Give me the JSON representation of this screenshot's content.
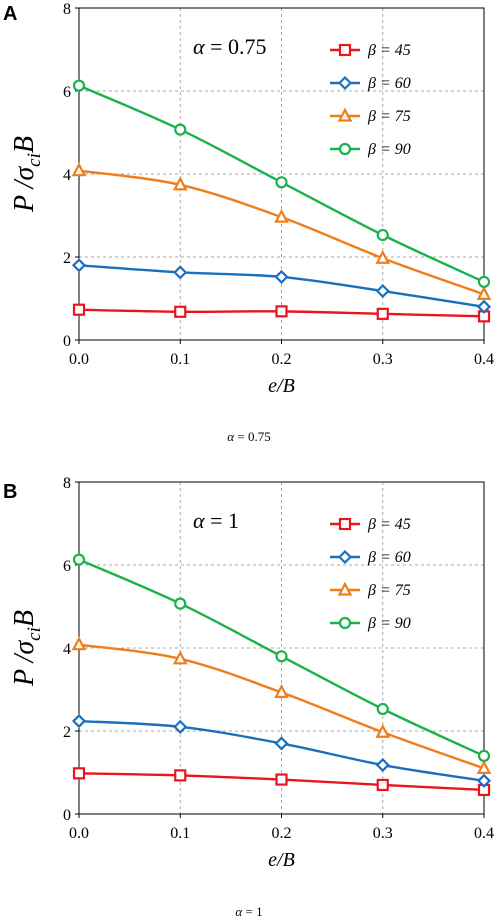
{
  "chart_data": [
    {
      "type": "line",
      "panel_label": "A",
      "inset_label": "α = 0.75",
      "caption": "α = 0.75",
      "xlabel": "e/B",
      "ylabel": "P /σciB",
      "xlim": [
        0,
        0.4
      ],
      "ylim": [
        0,
        8
      ],
      "x_ticks": [
        "0.0",
        "0.1",
        "0.2",
        "0.3",
        "0.4"
      ],
      "y_ticks": [
        "0",
        "2",
        "4",
        "6",
        "8"
      ],
      "grid": true,
      "legend_position": "top-right",
      "x": [
        0.0,
        0.1,
        0.2,
        0.3,
        0.4
      ],
      "series": [
        {
          "name": "β = 45",
          "color": "#e8161c",
          "marker": "square",
          "values": [
            0.73,
            0.68,
            0.69,
            0.63,
            0.57
          ]
        },
        {
          "name": "β = 60",
          "color": "#1a6fbd",
          "marker": "diamond",
          "values": [
            1.8,
            1.63,
            1.52,
            1.18,
            0.8
          ]
        },
        {
          "name": "β = 75",
          "color": "#f07d1a",
          "marker": "triangle",
          "values": [
            4.08,
            3.74,
            2.96,
            1.97,
            1.1
          ]
        },
        {
          "name": "β = 90",
          "color": "#1ab24a",
          "marker": "circle",
          "values": [
            6.13,
            5.07,
            3.8,
            2.53,
            1.4
          ]
        }
      ]
    },
    {
      "type": "line",
      "panel_label": "B",
      "inset_label": "α = 1",
      "caption": "α = 1",
      "xlabel": "e/B",
      "ylabel": "P /σciB",
      "xlim": [
        0,
        0.4
      ],
      "ylim": [
        0,
        8
      ],
      "x_ticks": [
        "0.0",
        "0.1",
        "0.2",
        "0.3",
        "0.4"
      ],
      "y_ticks": [
        "0",
        "2",
        "4",
        "6",
        "8"
      ],
      "grid": true,
      "legend_position": "top-right",
      "x": [
        0.0,
        0.1,
        0.2,
        0.3,
        0.4
      ],
      "series": [
        {
          "name": "β = 45",
          "color": "#e8161c",
          "marker": "square",
          "values": [
            0.98,
            0.93,
            0.83,
            0.7,
            0.58
          ]
        },
        {
          "name": "β = 60",
          "color": "#1a6fbd",
          "marker": "diamond",
          "values": [
            2.24,
            2.1,
            1.7,
            1.18,
            0.8
          ]
        },
        {
          "name": "β = 75",
          "color": "#f07d1a",
          "marker": "triangle",
          "values": [
            4.08,
            3.74,
            2.93,
            1.97,
            1.1
          ]
        },
        {
          "name": "β = 90",
          "color": "#1ab24a",
          "marker": "circle",
          "values": [
            6.13,
            5.07,
            3.8,
            2.53,
            1.4
          ]
        }
      ]
    }
  ]
}
